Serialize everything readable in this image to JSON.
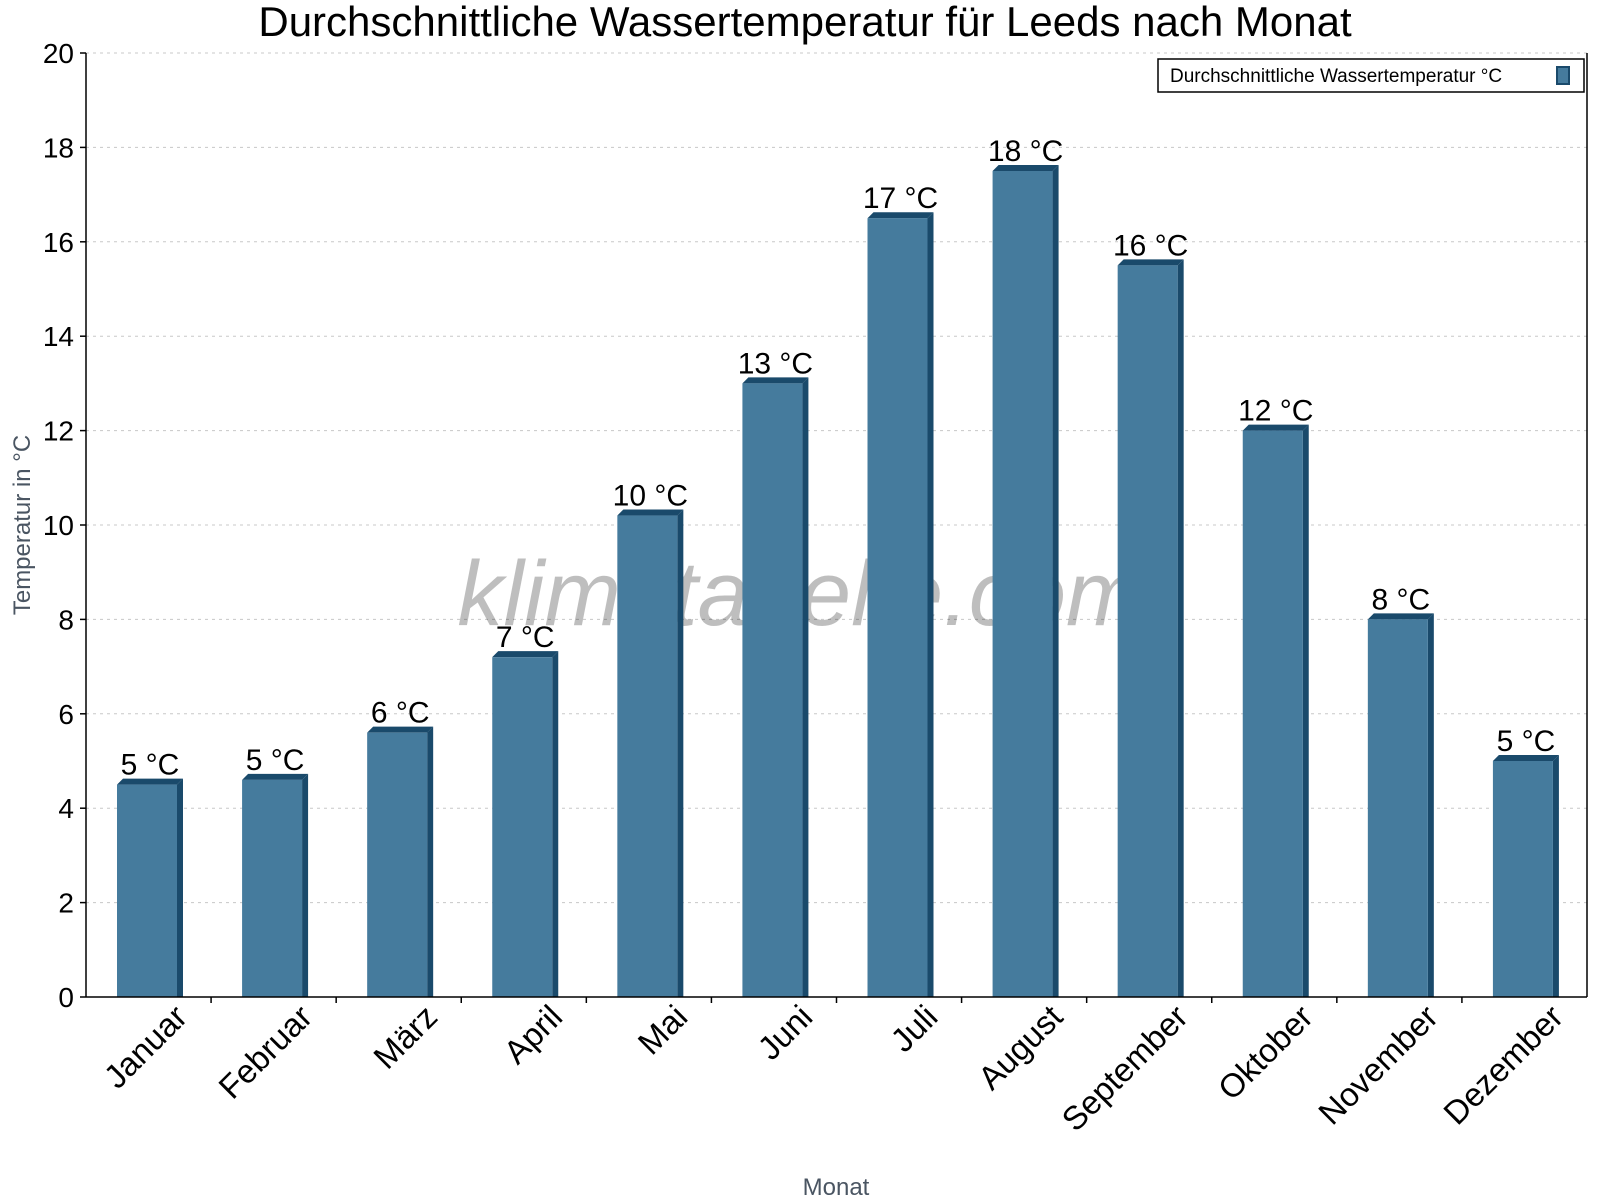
{
  "chart_data": {
    "type": "bar",
    "title": "Durchschnittliche Wassertemperatur für Leeds nach Monat",
    "xlabel": "Monat",
    "ylabel": "Temperatur in °C",
    "categories": [
      "Januar",
      "Februar",
      "März",
      "April",
      "Mai",
      "Juni",
      "Juli",
      "August",
      "September",
      "Oktober",
      "November",
      "Dezember"
    ],
    "series": [
      {
        "name": "Durchschnittliche Wassertemperatur °C",
        "values": [
          4.5,
          4.6,
          5.6,
          7.2,
          10.2,
          13.0,
          16.5,
          17.5,
          15.5,
          12.0,
          8.0,
          5.0
        ],
        "labels": [
          "5 °C",
          "5 °C",
          "6 °C",
          "7 °C",
          "10 °C",
          "13 °C",
          "17 °C",
          "18 °C",
          "16 °C",
          "12 °C",
          "8 °C",
          "5 °C"
        ],
        "color": "#457b9d",
        "side_color": "#1a4a6b"
      }
    ],
    "ylim": [
      0,
      20
    ],
    "yticks": [
      0,
      2,
      4,
      6,
      8,
      10,
      12,
      14,
      16,
      18,
      20
    ],
    "grid": true,
    "legend": "top-right",
    "watermark": "klimatabelle.com"
  }
}
